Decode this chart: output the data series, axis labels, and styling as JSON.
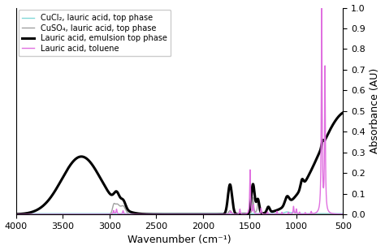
{
  "xlim": [
    4000,
    500
  ],
  "ylim": [
    0,
    1.0
  ],
  "xlabel": "Wavenumber (cm⁻¹)",
  "ylabel": "Absorbance (AU)",
  "yticks": [
    0,
    0.1,
    0.2,
    0.3,
    0.4,
    0.5,
    0.6,
    0.7,
    0.8,
    0.9,
    1.0
  ],
  "xticks": [
    4000,
    3500,
    3000,
    2500,
    2000,
    1500,
    1000,
    500
  ],
  "legend": [
    {
      "label": "CuCl₂, lauric acid, top phase",
      "color": "#80d8d8",
      "lw": 1.0
    },
    {
      "label": "CuSO₄, lauric acid, top phase",
      "color": "#a0a0a0",
      "lw": 1.0
    },
    {
      "label": "Lauric acid, emulsion top phase",
      "color": "#000000",
      "lw": 2.2
    },
    {
      "label": "Lauric acid, toluene",
      "color": "#e070e0",
      "lw": 1.0
    }
  ],
  "background_color": "#ffffff"
}
